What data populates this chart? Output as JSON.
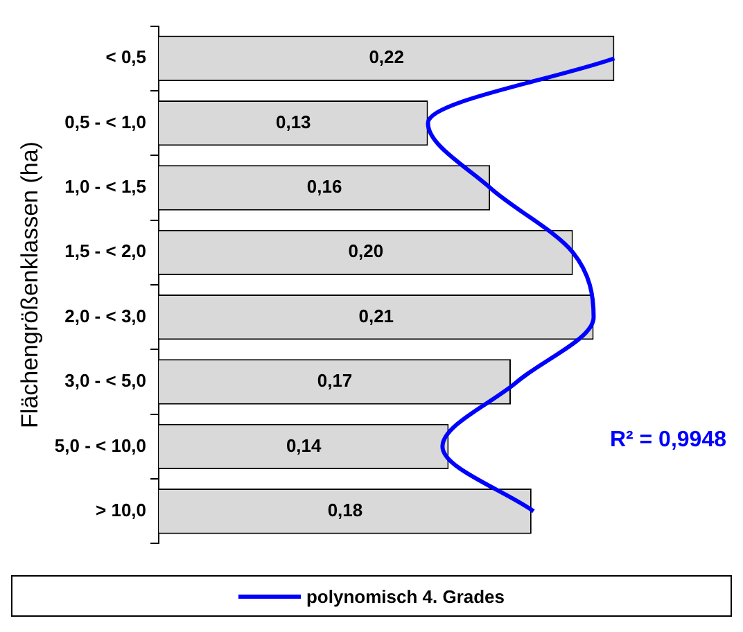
{
  "chart_data": {
    "type": "bar",
    "orientation": "horizontal",
    "ylabel": "Flächengrößenklassen (ha)",
    "categories": [
      "< 0,5",
      "0,5 - < 1,0",
      "1,0 - < 1,5",
      "1,5 - < 2,0",
      "2,0 - < 3,0",
      "3,0 - < 5,0",
      "5,0 - < 10,0",
      "> 10,0"
    ],
    "series": [
      {
        "color": "#d9d9d9",
        "values": [
          0.22,
          0.13,
          0.16,
          0.2,
          0.21,
          0.17,
          0.14,
          0.18
        ],
        "value_labels": [
          "0,22",
          "0,13",
          "0,16",
          "0,20",
          "0,21",
          "0,17",
          "0,14",
          "0,18"
        ]
      },
      {
        "type": "line",
        "name": "polynomisch 4. Grades",
        "color": "#0000ff",
        "values": [
          0.22,
          0.13,
          0.16,
          0.2,
          0.21,
          0.173,
          0.137,
          0.181
        ]
      }
    ],
    "annotations": [
      "R² = 0,9948"
    ],
    "legend": "bottom",
    "grid": false
  }
}
